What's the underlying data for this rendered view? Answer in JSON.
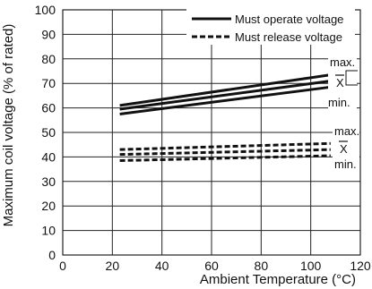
{
  "chart_data": {
    "type": "line",
    "title": "",
    "xlabel": "Ambient Temperature (°C)",
    "ylabel": "Maximum coil voltage (% of rated)",
    "xlim": [
      0,
      120
    ],
    "ylim": [
      0,
      100
    ],
    "xticks": [
      0,
      20,
      40,
      60,
      80,
      100,
      120
    ],
    "yticks": [
      0,
      10,
      20,
      30,
      40,
      50,
      60,
      70,
      80,
      90,
      100
    ],
    "grid": true,
    "legend_position": "top-right",
    "legend": [
      {
        "label": "Must operate voltage",
        "style": "solid"
      },
      {
        "label": "Must release voltage",
        "style": "dashed"
      }
    ],
    "series": [
      {
        "group": "Must operate voltage",
        "stat": "max.",
        "style": "solid",
        "x": [
          23,
          108
        ],
        "y": [
          61,
          73.5
        ]
      },
      {
        "group": "Must operate voltage",
        "stat": "X",
        "style": "solid",
        "x": [
          23,
          108
        ],
        "y": [
          59.5,
          71
        ]
      },
      {
        "group": "Must operate voltage",
        "stat": "min.",
        "style": "solid",
        "x": [
          23,
          108
        ],
        "y": [
          57.5,
          68.5
        ]
      },
      {
        "group": "Must release voltage",
        "stat": "max.",
        "style": "dashed",
        "x": [
          23,
          108
        ],
        "y": [
          43,
          45.5
        ]
      },
      {
        "group": "Must release voltage",
        "stat": "X",
        "style": "dashed",
        "x": [
          23,
          108
        ],
        "y": [
          41,
          43
        ]
      },
      {
        "group": "Must release voltage",
        "stat": "min.",
        "style": "dashed",
        "x": [
          23,
          108
        ],
        "y": [
          38.5,
          40.5
        ]
      }
    ],
    "annotations": {
      "operate": [
        "max.",
        "X",
        "min."
      ],
      "release": [
        "max.",
        "X",
        "min."
      ]
    },
    "colors": {
      "line": "#111111",
      "grid": "#222222",
      "background": "#ffffff"
    }
  }
}
